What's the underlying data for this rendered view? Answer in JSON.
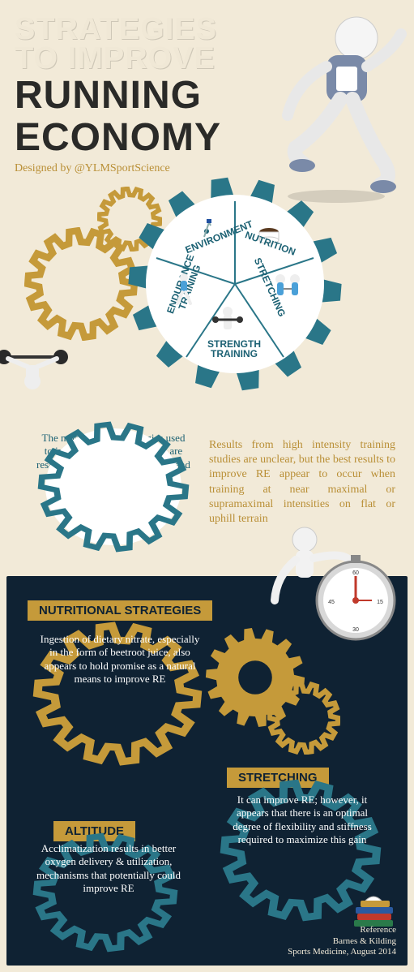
{
  "title": {
    "line1a": "STRATEGIES",
    "line1b": "TO IMPROVE",
    "line2a": "RUNNING",
    "line2b": "ECONOMY",
    "designed": "Designed by @YLMSportScience"
  },
  "colors": {
    "bg": "#f2ead8",
    "teal": "#2a7688",
    "teal_dark": "#1c6173",
    "gold": "#c59a3a",
    "gold_dark": "#b98f36",
    "navy": "#0f2233",
    "white": "#ffffff",
    "black": "#2a2a28"
  },
  "central_wedges": [
    {
      "label": "ENVIRONMENT",
      "angle": -54
    },
    {
      "label": "NUTRITION",
      "angle": 18
    },
    {
      "label": "STRETCHING",
      "angle": 65
    },
    {
      "label": "STRENGTH\nTRAINING",
      "angle": 0
    },
    {
      "label": "ENDURANCE\nTRAINING",
      "angle": -70
    }
  ],
  "common_strategies": "The most common strategies used to improve running economy are resistance & plyometric training and explosive resistance training",
  "results_text": "Results from high intensity training studies are unclear, but the best results to improve RE appear to occur when training at near maximal or supramaximal intensities on flat or uphill terrain",
  "sections": {
    "nutritional": {
      "banner": "NUTRITIONAL STRATEGIES",
      "text": "Ingestion of dietary nitrate, especially in the form of beetroot juice, also appears to hold promise as a natural means to improve RE"
    },
    "stretching": {
      "banner": "STRETCHING",
      "text": "It can improve RE; however, it appears that there is an optimal degree of flexibility and stiffness required to maximize this gain"
    },
    "altitude": {
      "banner": "ALTITUDE",
      "text": "Acclimatization results in better oxygen delivery & utilization, mechanisms that potentially could improve RE"
    }
  },
  "reference": {
    "label": "Reference",
    "authors": "Barnes & Kilding",
    "source": "Sports Medicine, August 2014"
  },
  "gear_style": {
    "teeth": 14,
    "tooth_ratio": 0.14
  }
}
